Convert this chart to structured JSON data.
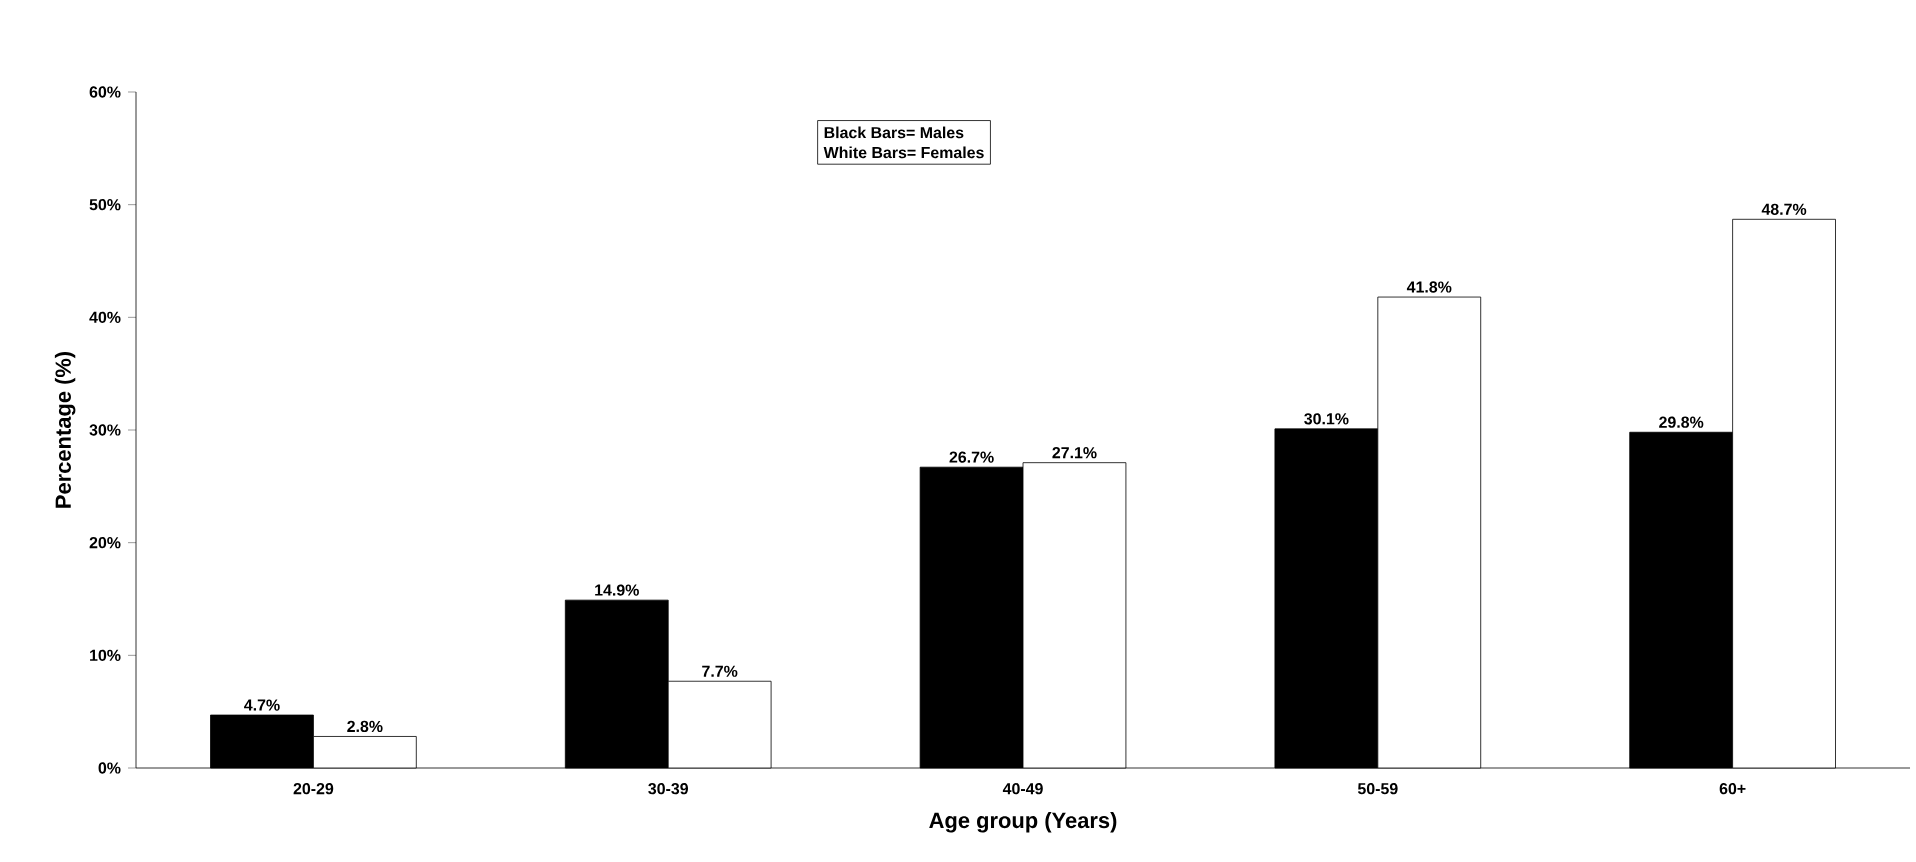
{
  "chart_data": {
    "type": "bar",
    "xlabel": "Age group (Years)",
    "ylabel": "Percentage (%)",
    "categories": [
      "20-29",
      "30-39",
      "40-49",
      "50-59",
      "60+"
    ],
    "series": [
      {
        "color": "#000000",
        "values": [
          4.7,
          14.9,
          26.7,
          30.1,
          29.8
        ],
        "value_labels": [
          "4.7%",
          "14.9%",
          "26.7%",
          "30.1%",
          "29.8%"
        ]
      },
      {
        "color": "#ffffff",
        "values": [
          2.8,
          7.7,
          27.1,
          41.8,
          48.7
        ],
        "value_labels": [
          "2.8%",
          "7.7%",
          "27.1%",
          "41.8%",
          "48.7%"
        ]
      }
    ],
    "ylim": [
      0,
      60
    ],
    "yticks": [
      {
        "value": 0,
        "label": "0%"
      },
      {
        "value": 10,
        "label": "10%"
      },
      {
        "value": 20,
        "label": "20%"
      },
      {
        "value": 30,
        "label": "30%"
      },
      {
        "value": 40,
        "label": "40%"
      },
      {
        "value": 50,
        "label": "50%"
      },
      {
        "value": 60,
        "label": "60%"
      }
    ],
    "annotations": [
      "Black Bars= Males",
      "White Bars= Females"
    ],
    "grid": false
  }
}
